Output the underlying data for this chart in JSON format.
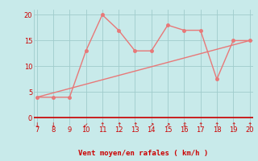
{
  "x": [
    7,
    8,
    9,
    10,
    11,
    12,
    13,
    14,
    15,
    16,
    17,
    18,
    19,
    20
  ],
  "y_jagged": [
    4,
    4,
    4,
    13,
    20,
    17,
    13,
    13,
    18,
    17,
    17,
    7.5,
    15,
    15
  ],
  "trend_x": [
    7,
    20
  ],
  "trend_y": [
    4,
    15
  ],
  "xlim": [
    6.8,
    20.2
  ],
  "ylim": [
    -1.5,
    21
  ],
  "xticks": [
    7,
    8,
    9,
    10,
    11,
    12,
    13,
    14,
    15,
    16,
    17,
    18,
    19,
    20
  ],
  "yticks": [
    0,
    5,
    10,
    15,
    20
  ],
  "xlabel": "Vent moyen/en rafales ( km/h )",
  "line_color": "#e87878",
  "bg_color": "#c8eaea",
  "grid_color": "#a0cccc",
  "axis_color": "#cc0000",
  "text_color": "#cc0000",
  "marker_size": 2.5,
  "line_width": 1.0,
  "wind_dirs": {
    "7": "↓",
    "8": "↓",
    "10": "↙",
    "11": "↑",
    "12": "↑",
    "13": "↑",
    "14": "↗",
    "15": "↗",
    "16": "⇕",
    "17": "↑",
    "18": "↑",
    "19": "↑",
    "20": "↑"
  }
}
